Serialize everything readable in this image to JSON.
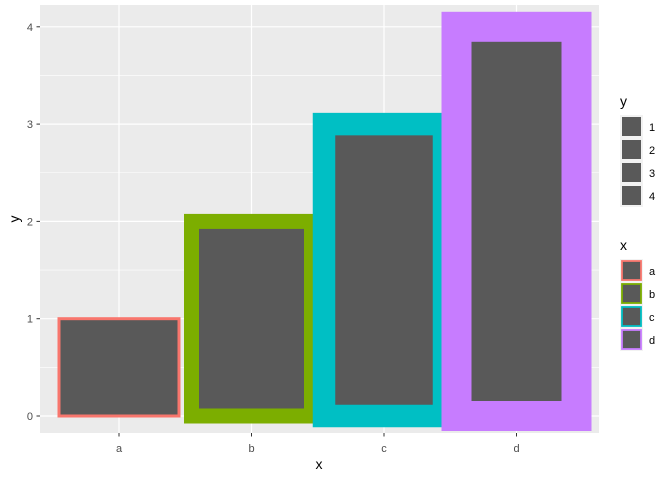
{
  "chart_data": {
    "type": "bar",
    "title": "",
    "xlabel": "x",
    "ylabel": "y",
    "categories": [
      "a",
      "b",
      "c",
      "d"
    ],
    "values": [
      1,
      2,
      3,
      4
    ],
    "ylim": [
      0,
      4
    ],
    "yticks": [
      "0",
      "1",
      "2",
      "3",
      "4"
    ],
    "grid": true,
    "fill_color": "#595959",
    "background_color": "#ebebeb",
    "grid_color": "#ffffff",
    "outline_colors": [
      "#F8766D",
      "#7CAE00",
      "#00BFC4",
      "#C77CFF"
    ],
    "outline_widths": [
      1,
      2,
      3,
      4
    ],
    "legend_position": "right",
    "legends": [
      {
        "title": "y",
        "type": "fill",
        "labels": [
          "1",
          "2",
          "3",
          "4"
        ]
      },
      {
        "title": "x",
        "type": "color",
        "labels": [
          "a",
          "b",
          "c",
          "d"
        ],
        "colors": [
          "#F8766D",
          "#7CAE00",
          "#00BFC4",
          "#C77CFF"
        ]
      }
    ]
  }
}
